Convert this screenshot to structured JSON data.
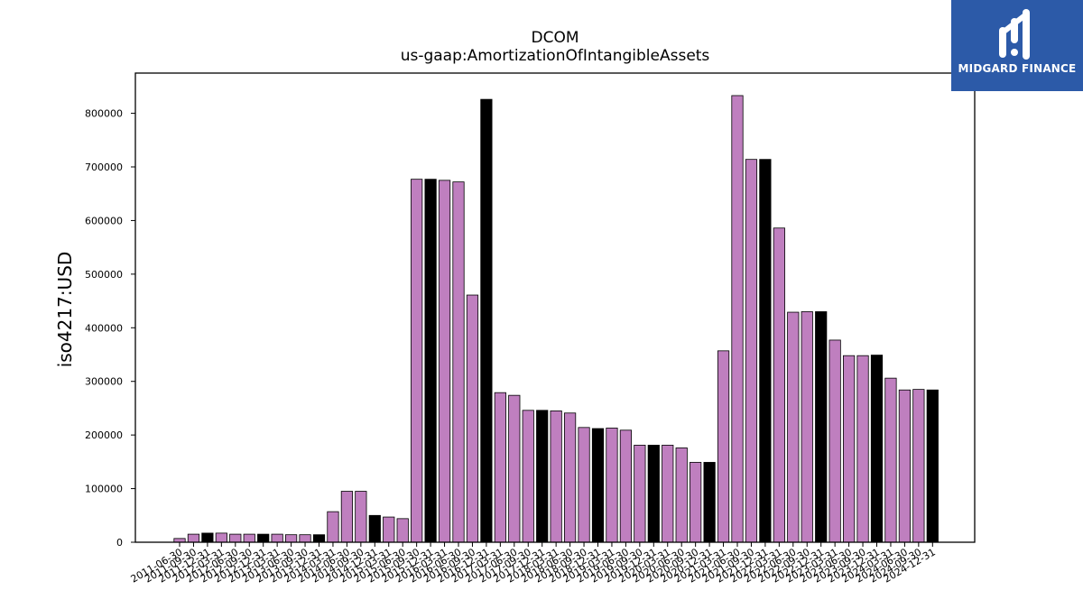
{
  "brand": {
    "name": "MIDGARD FINANCE",
    "color": "#2c5aa8"
  },
  "chart_data": {
    "type": "bar",
    "title": "DCOM",
    "subtitle": "us-gaap:AmortizationOfIntangibleAssets",
    "ylabel": "iso4217:USD",
    "xlabel": "",
    "ylim": [
      0,
      875000
    ],
    "yticks": [
      0,
      100000,
      200000,
      300000,
      400000,
      500000,
      600000,
      700000,
      800000
    ],
    "grid": false,
    "colors": {
      "default": "#bf7fbf",
      "highlight": "#000000"
    },
    "categories": [
      "2011-06-30",
      "2011-09-30",
      "2011-12-31",
      "2012-03-31",
      "2012-06-30",
      "2012-09-30",
      "2012-12-31",
      "2013-03-31",
      "2013-06-30",
      "2013-09-30",
      "2013-12-31",
      "2014-03-31",
      "2014-06-30",
      "2014-09-30",
      "2014-12-31",
      "2015-03-31",
      "2015-06-30",
      "2015-09-30",
      "2015-12-31",
      "2016-03-31",
      "2016-06-30",
      "2016-09-30",
      "2016-12-31",
      "2017-03-31",
      "2017-06-30",
      "2017-09-30",
      "2017-12-31",
      "2018-03-31",
      "2018-06-30",
      "2018-09-30",
      "2018-12-31",
      "2019-03-31",
      "2019-06-30",
      "2019-09-30",
      "2019-12-31",
      "2020-03-31",
      "2020-06-30",
      "2020-09-30",
      "2020-12-31",
      "2021-03-31",
      "2021-06-30",
      "2021-09-30",
      "2021-12-31",
      "2022-03-31",
      "2022-06-30",
      "2022-09-30",
      "2022-12-31",
      "2023-03-31",
      "2023-06-30",
      "2023-09-30",
      "2023-12-31",
      "2024-03-31",
      "2024-06-30",
      "2024-09-30",
      "2024-12-31"
    ],
    "values": [
      7000,
      15000,
      17000,
      17000,
      15000,
      15000,
      15000,
      15000,
      14000,
      14000,
      14000,
      57000,
      95000,
      95000,
      50000,
      47000,
      44000,
      677000,
      677000,
      675000,
      672000,
      461000,
      826000,
      279000,
      274000,
      246000,
      246000,
      245000,
      241000,
      214000,
      212000,
      213000,
      209000,
      181000,
      181000,
      181000,
      176000,
      149000,
      149000,
      357000,
      833000,
      714000,
      714000,
      586000,
      429000,
      430000,
      430000,
      377000,
      348000,
      348000,
      349000,
      306000,
      284000,
      285000,
      284000
    ],
    "highlight": [
      false,
      false,
      true,
      false,
      false,
      false,
      true,
      false,
      false,
      false,
      true,
      false,
      false,
      false,
      true,
      false,
      false,
      false,
      true,
      false,
      false,
      false,
      true,
      false,
      false,
      false,
      true,
      false,
      false,
      false,
      true,
      false,
      false,
      false,
      true,
      false,
      false,
      false,
      true,
      false,
      false,
      false,
      true,
      false,
      false,
      false,
      true,
      false,
      false,
      false,
      true,
      false,
      false,
      false,
      true
    ]
  }
}
